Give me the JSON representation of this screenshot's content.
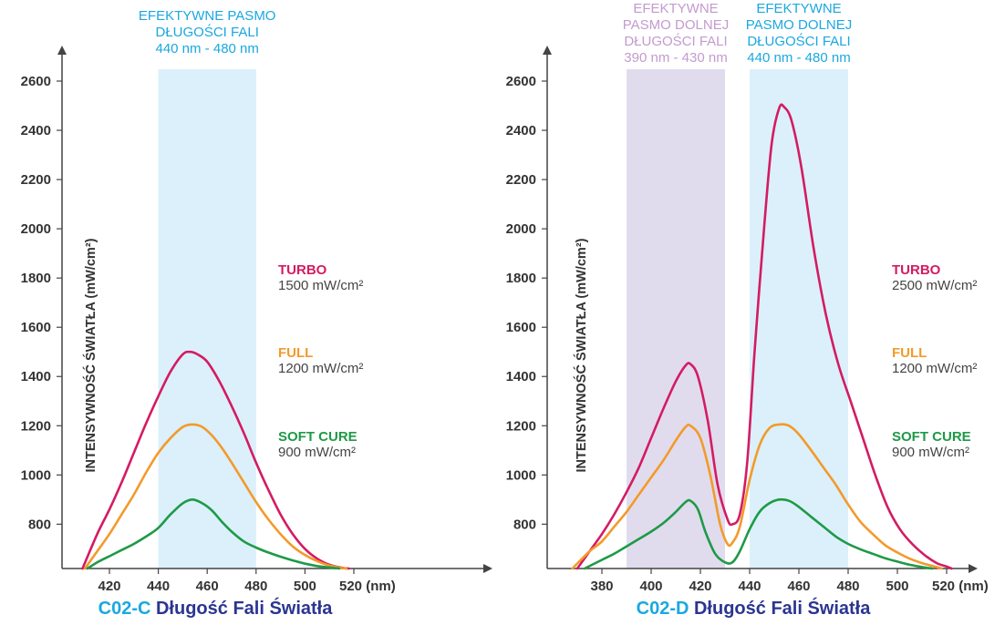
{
  "colors": {
    "turbo": "#d41b63",
    "full": "#f39a2b",
    "soft": "#1e9a46",
    "band_blue": "#dbf0fa",
    "band_violet": "#e0dcee",
    "label_blue": "#1aa8e0",
    "label_violet": "#c49ad0",
    "title_navy": "#2a3592",
    "axis": "#444444"
  },
  "chart_data": [
    {
      "type": "line",
      "title_code": "C02-C",
      "title_rest": "Długość Fali Światła",
      "xlabel_unit": "(nm)",
      "ylabel": "INTENSYWNOŚĆ ŚWIATŁA (mW/cm²)",
      "xlim": [
        406,
        522
      ],
      "ylim": [
        620,
        2680
      ],
      "x_ticks": [
        420,
        440,
        460,
        480,
        500,
        520
      ],
      "x_tick_labels": [
        "420",
        "440",
        "460",
        "480",
        "500",
        "520 (nm)"
      ],
      "y_ticks": [
        800,
        1000,
        1200,
        1400,
        1600,
        1800,
        2000,
        2200,
        2400,
        2600
      ],
      "bands": [
        {
          "from": 440,
          "to": 480,
          "color": "band_blue",
          "label_color": "label_blue",
          "label": [
            "EFEKTYWNE PASMO",
            "DŁUGOŚCI FALI",
            "440 nm - 480 nm"
          ]
        }
      ],
      "legend": [
        {
          "name": "TURBO",
          "power": "1500 mW/cm²",
          "color": "turbo"
        },
        {
          "name": "FULL",
          "power": "1200 mW/cm²",
          "color": "full"
        },
        {
          "name": "SOFT CURE",
          "power": "900 mW/cm²",
          "color": "soft"
        }
      ],
      "series": [
        {
          "name": "TURBO",
          "color": "turbo",
          "points": [
            [
              409,
              620
            ],
            [
              415,
              760
            ],
            [
              420,
              860
            ],
            [
              425,
              970
            ],
            [
              430,
              1090
            ],
            [
              435,
              1210
            ],
            [
              440,
              1320
            ],
            [
              445,
              1420
            ],
            [
              450,
              1490
            ],
            [
              453,
              1500
            ],
            [
              456,
              1490
            ],
            [
              460,
              1460
            ],
            [
              465,
              1380
            ],
            [
              470,
              1280
            ],
            [
              475,
              1170
            ],
            [
              480,
              1050
            ],
            [
              485,
              940
            ],
            [
              490,
              840
            ],
            [
              495,
              760
            ],
            [
              500,
              700
            ],
            [
              505,
              660
            ],
            [
              510,
              635
            ],
            [
              515,
              623
            ],
            [
              518,
              620
            ]
          ]
        },
        {
          "name": "FULL",
          "color": "full",
          "points": [
            [
              410,
              620
            ],
            [
              415,
              690
            ],
            [
              420,
              760
            ],
            [
              425,
              840
            ],
            [
              430,
              920
            ],
            [
              435,
              1010
            ],
            [
              440,
              1090
            ],
            [
              445,
              1150
            ],
            [
              450,
              1195
            ],
            [
              454,
              1205
            ],
            [
              458,
              1195
            ],
            [
              462,
              1160
            ],
            [
              466,
              1110
            ],
            [
              470,
              1050
            ],
            [
              475,
              970
            ],
            [
              480,
              890
            ],
            [
              485,
              820
            ],
            [
              490,
              760
            ],
            [
              495,
              710
            ],
            [
              500,
              675
            ],
            [
              505,
              650
            ],
            [
              510,
              632
            ],
            [
              515,
              622
            ],
            [
              517,
              620
            ]
          ]
        },
        {
          "name": "SOFT CURE",
          "color": "soft",
          "points": [
            [
              411,
              620
            ],
            [
              415,
              645
            ],
            [
              420,
              670
            ],
            [
              425,
              695
            ],
            [
              430,
              720
            ],
            [
              435,
              750
            ],
            [
              440,
              785
            ],
            [
              445,
              840
            ],
            [
              450,
              885
            ],
            [
              454,
              900
            ],
            [
              458,
              885
            ],
            [
              462,
              855
            ],
            [
              466,
              810
            ],
            [
              470,
              770
            ],
            [
              475,
              730
            ],
            [
              480,
              705
            ],
            [
              485,
              685
            ],
            [
              490,
              668
            ],
            [
              495,
              653
            ],
            [
              500,
              640
            ],
            [
              505,
              630
            ],
            [
              510,
              624
            ],
            [
              514,
              620
            ]
          ]
        }
      ]
    },
    {
      "type": "line",
      "title_code": "C02-D",
      "title_rest": "Długość Fali Światła",
      "xlabel_unit": "(nm)",
      "ylabel": "INTENSYWNOŚĆ ŚWIATŁA (mW/cm²)",
      "xlim": [
        365,
        528
      ],
      "ylim": [
        620,
        2680
      ],
      "x_ticks": [
        380,
        400,
        420,
        440,
        460,
        480,
        500,
        520
      ],
      "x_tick_labels": [
        "380",
        "400",
        "420",
        "440",
        "460",
        "480",
        "500",
        "520 (nm)"
      ],
      "y_ticks": [
        800,
        1000,
        1200,
        1400,
        1600,
        1800,
        2000,
        2200,
        2400,
        2600
      ],
      "bands": [
        {
          "from": 390,
          "to": 430,
          "color": "band_violet",
          "label_color": "label_violet",
          "label": [
            "EFEKTYWNE",
            "PASMO DOLNEJ",
            "DŁUGOŚCI FALI",
            "390 nm - 430 nm"
          ]
        },
        {
          "from": 440,
          "to": 480,
          "color": "band_blue",
          "label_color": "label_blue",
          "label": [
            "EFEKTYWNE",
            "PASMO DOLNEJ",
            "DŁUGOŚCI FALI",
            "440 nm - 480 nm"
          ]
        }
      ],
      "legend": [
        {
          "name": "TURBO",
          "power": "2500 mW/cm²",
          "color": "turbo"
        },
        {
          "name": "FULL",
          "power": "1200 mW/cm²",
          "color": "full"
        },
        {
          "name": "SOFT CURE",
          "power": "900 mW/cm²",
          "color": "soft"
        }
      ],
      "series": [
        {
          "name": "TURBO",
          "color": "turbo",
          "points": [
            [
              370,
              620
            ],
            [
              375,
              690
            ],
            [
              380,
              760
            ],
            [
              385,
              840
            ],
            [
              390,
              930
            ],
            [
              395,
              1030
            ],
            [
              400,
              1150
            ],
            [
              405,
              1270
            ],
            [
              410,
              1380
            ],
            [
              414,
              1445
            ],
            [
              416,
              1450
            ],
            [
              419,
              1400
            ],
            [
              423,
              1220
            ],
            [
              427,
              960
            ],
            [
              431,
              820
            ],
            [
              433,
              800
            ],
            [
              436,
              840
            ],
            [
              439,
              1050
            ],
            [
              442,
              1500
            ],
            [
              446,
              2020
            ],
            [
              449,
              2350
            ],
            [
              452,
              2490
            ],
            [
              454,
              2495
            ],
            [
              457,
              2440
            ],
            [
              461,
              2250
            ],
            [
              466,
              1920
            ],
            [
              471,
              1650
            ],
            [
              476,
              1450
            ],
            [
              481,
              1300
            ],
            [
              486,
              1150
            ],
            [
              491,
              1000
            ],
            [
              496,
              870
            ],
            [
              501,
              780
            ],
            [
              506,
              720
            ],
            [
              511,
              675
            ],
            [
              516,
              642
            ],
            [
              520,
              628
            ],
            [
              522,
              620
            ]
          ]
        },
        {
          "name": "FULL",
          "color": "full",
          "points": [
            [
              368,
              620
            ],
            [
              375,
              690
            ],
            [
              380,
              730
            ],
            [
              385,
              790
            ],
            [
              390,
              850
            ],
            [
              395,
              920
            ],
            [
              400,
              990
            ],
            [
              405,
              1060
            ],
            [
              410,
              1140
            ],
            [
              414,
              1195
            ],
            [
              416,
              1200
            ],
            [
              420,
              1150
            ],
            [
              424,
              1000
            ],
            [
              428,
              800
            ],
            [
              431,
              720
            ],
            [
              433,
              725
            ],
            [
              436,
              790
            ],
            [
              440,
              980
            ],
            [
              444,
              1120
            ],
            [
              448,
              1190
            ],
            [
              452,
              1205
            ],
            [
              456,
              1200
            ],
            [
              460,
              1165
            ],
            [
              465,
              1100
            ],
            [
              470,
              1030
            ],
            [
              475,
              960
            ],
            [
              480,
              880
            ],
            [
              485,
              810
            ],
            [
              490,
              760
            ],
            [
              495,
              715
            ],
            [
              500,
              685
            ],
            [
              505,
              660
            ],
            [
              510,
              642
            ],
            [
              515,
              628
            ],
            [
              518,
              620
            ]
          ]
        },
        {
          "name": "SOFT CURE",
          "color": "soft",
          "points": [
            [
              373,
              620
            ],
            [
              380,
              655
            ],
            [
              385,
              680
            ],
            [
              390,
              710
            ],
            [
              395,
              740
            ],
            [
              400,
              770
            ],
            [
              405,
              805
            ],
            [
              410,
              850
            ],
            [
              414,
              890
            ],
            [
              416,
              895
            ],
            [
              419,
              860
            ],
            [
              422,
              770
            ],
            [
              426,
              680
            ],
            [
              430,
              645
            ],
            [
              433,
              645
            ],
            [
              436,
              690
            ],
            [
              440,
              780
            ],
            [
              444,
              850
            ],
            [
              448,
              885
            ],
            [
              452,
              900
            ],
            [
              456,
              895
            ],
            [
              460,
              870
            ],
            [
              465,
              830
            ],
            [
              470,
              790
            ],
            [
              475,
              750
            ],
            [
              480,
              720
            ],
            [
              485,
              698
            ],
            [
              490,
              680
            ],
            [
              495,
              662
            ],
            [
              500,
              648
            ],
            [
              505,
              635
            ],
            [
              510,
              626
            ],
            [
              514,
              620
            ]
          ]
        }
      ]
    }
  ]
}
